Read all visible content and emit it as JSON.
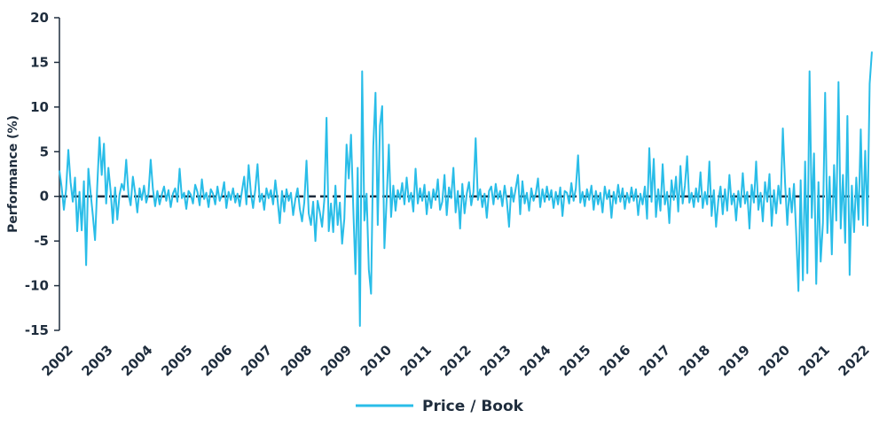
{
  "chart_data": {
    "type": "line",
    "ylabel": "Performance (%)",
    "xlabel": "",
    "ylim": [
      -15,
      20
    ],
    "yticks": [
      -15,
      -10,
      -5,
      0,
      5,
      10,
      15,
      20
    ],
    "xticks": [
      "2002",
      "2003",
      "2004",
      "2005",
      "2006",
      "2007",
      "2008",
      "2009",
      "2010",
      "2011",
      "2012",
      "2013",
      "2014",
      "2015",
      "2016",
      "2017",
      "2018",
      "2019",
      "2020",
      "2021",
      "2022"
    ],
    "zero_line": true,
    "grid": false,
    "legend_position": "bottom-center",
    "colors": {
      "series": "#29bde8",
      "axis": "#1f2d3d"
    },
    "series": [
      {
        "name": "Price / Book",
        "x_start": 2002.0,
        "x_end": 2022.4,
        "values": [
          2.9,
          1.0,
          -1.5,
          0.8,
          5.2,
          1.6,
          -0.6,
          2.1,
          -3.9,
          0.5,
          -3.8,
          1.7,
          -7.7,
          3.1,
          0.4,
          -2.1,
          -4.9,
          1.2,
          6.6,
          2.4,
          5.9,
          -0.8,
          3.2,
          0.6,
          -3.0,
          1.0,
          -2.6,
          0.2,
          1.4,
          0.7,
          4.1,
          0.3,
          -1.0,
          2.2,
          0.4,
          -1.8,
          0.9,
          -0.4,
          1.2,
          -0.7,
          0.3,
          4.1,
          0.8,
          -1.1,
          0.6,
          -0.9,
          0.2,
          1.1,
          -0.5,
          0.7,
          -1.2,
          0.3,
          0.9,
          -0.6,
          3.1,
          -0.2,
          0.4,
          -1.4,
          0.6,
          0.2,
          -0.8,
          1.3,
          0.5,
          -1.0,
          1.9,
          -0.3,
          0.4,
          -1.2,
          0.8,
          0.3,
          -0.9,
          1.1,
          -0.5,
          0.2,
          1.6,
          -1.3,
          0.5,
          -0.4,
          0.9,
          -0.7,
          0.3,
          -1.1,
          0.6,
          2.2,
          -0.9,
          3.5,
          0.4,
          -1.3,
          0.8,
          3.6,
          -0.6,
          0.3,
          -1.5,
          0.9,
          -0.2,
          0.7,
          -0.9,
          1.8,
          -0.4,
          -3.0,
          0.6,
          -1.7,
          0.8,
          -0.5,
          0.4,
          -2.1,
          -0.3,
          0.9,
          -1.4,
          -2.8,
          -0.7,
          4.0,
          -1.9,
          -3.2,
          -0.6,
          -5.0,
          -0.5,
          -1.8,
          -3.4,
          -0.4,
          8.8,
          -3.9,
          -0.8,
          -4.0,
          1.2,
          -3.2,
          -0.7,
          -5.3,
          -2.5,
          5.8,
          2.0,
          6.9,
          -1.2,
          -8.7,
          3.2,
          -14.5,
          14.0,
          -2.7,
          0.3,
          -8.2,
          -10.9,
          5.6,
          11.6,
          -3.2,
          7.9,
          10.1,
          -5.8,
          -0.4,
          5.8,
          -2.3,
          1.2,
          -1.6,
          0.7,
          -0.3,
          1.5,
          -0.9,
          2.1,
          -0.6,
          0.4,
          -1.7,
          3.1,
          -0.8,
          0.9,
          -0.5,
          1.3,
          -2.0,
          0.5,
          -1.3,
          0.8,
          -0.4,
          1.9,
          -1.5,
          -0.6,
          2.4,
          -2.1,
          1.0,
          -0.2,
          3.2,
          -1.8,
          0.6,
          -3.6,
          1.4,
          -1.9,
          0.3,
          1.6,
          -1.0,
          0.5,
          6.5,
          -0.4,
          0.8,
          -1.2,
          0.3,
          -2.4,
          0.6,
          1.1,
          -0.9,
          1.4,
          -0.3,
          0.6,
          -1.1,
          1.2,
          -0.5,
          -3.4,
          1.0,
          -0.6,
          0.9,
          2.4,
          -2.0,
          1.7,
          -0.8,
          0.4,
          -1.6,
          0.9,
          -0.5,
          0.3,
          2.0,
          -1.2,
          0.8,
          -0.6,
          1.1,
          -0.4,
          0.7,
          -1.3,
          0.5,
          -0.9,
          1.0,
          -2.2,
          0.6,
          0.4,
          -0.8,
          1.5,
          -0.5,
          0.9,
          4.6,
          -0.7,
          0.5,
          -1.1,
          0.8,
          -0.4,
          1.2,
          -1.5,
          0.6,
          -0.9,
          0.4,
          -1.8,
          1.1,
          -0.3,
          0.7,
          -2.4,
          0.5,
          -0.8,
          1.3,
          -0.6,
          0.9,
          -1.4,
          0.4,
          -0.7,
          1.0,
          -0.5,
          0.8,
          -2.1,
          0.3,
          -0.9,
          1.1,
          -2.5,
          5.4,
          -0.6,
          4.2,
          -2.3,
          0.8,
          -1.6,
          3.6,
          -0.9,
          0.5,
          -3.0,
          1.8,
          -0.4,
          2.2,
          -1.7,
          3.4,
          -0.8,
          1.2,
          4.5,
          -0.7,
          0.4,
          -1.2,
          0.9,
          -0.6,
          2.7,
          -1.3,
          0.5,
          -0.9,
          3.9,
          -2.2,
          0.7,
          -3.4,
          -0.5,
          1.1,
          -2.0,
          0.8,
          -1.6,
          2.4,
          -0.9,
          0.3,
          -2.7,
          0.6,
          -1.2,
          2.6,
          -0.8,
          0.5,
          -3.6,
          1.3,
          -0.7,
          3.9,
          -1.5,
          0.4,
          -2.8,
          1.6,
          -0.6,
          2.5,
          -3.3,
          0.7,
          -1.9,
          1.2,
          -0.8,
          7.6,
          1.5,
          -3.2,
          0.9,
          -1.8,
          1.4,
          -4.2,
          -10.6,
          1.8,
          -9.4,
          3.9,
          -8.6,
          14.0,
          -2.4,
          4.8,
          -9.8,
          1.6,
          -7.3,
          -3.0,
          11.6,
          -4.1,
          2.2,
          -6.5,
          3.5,
          -2.7,
          12.8,
          -3.6,
          2.4,
          -5.2,
          9.0,
          -8.8,
          1.2,
          -4.0,
          2.1,
          -2.6,
          7.5,
          -3.2,
          5.1,
          -3.3,
          12.6,
          16.2
        ]
      }
    ]
  }
}
